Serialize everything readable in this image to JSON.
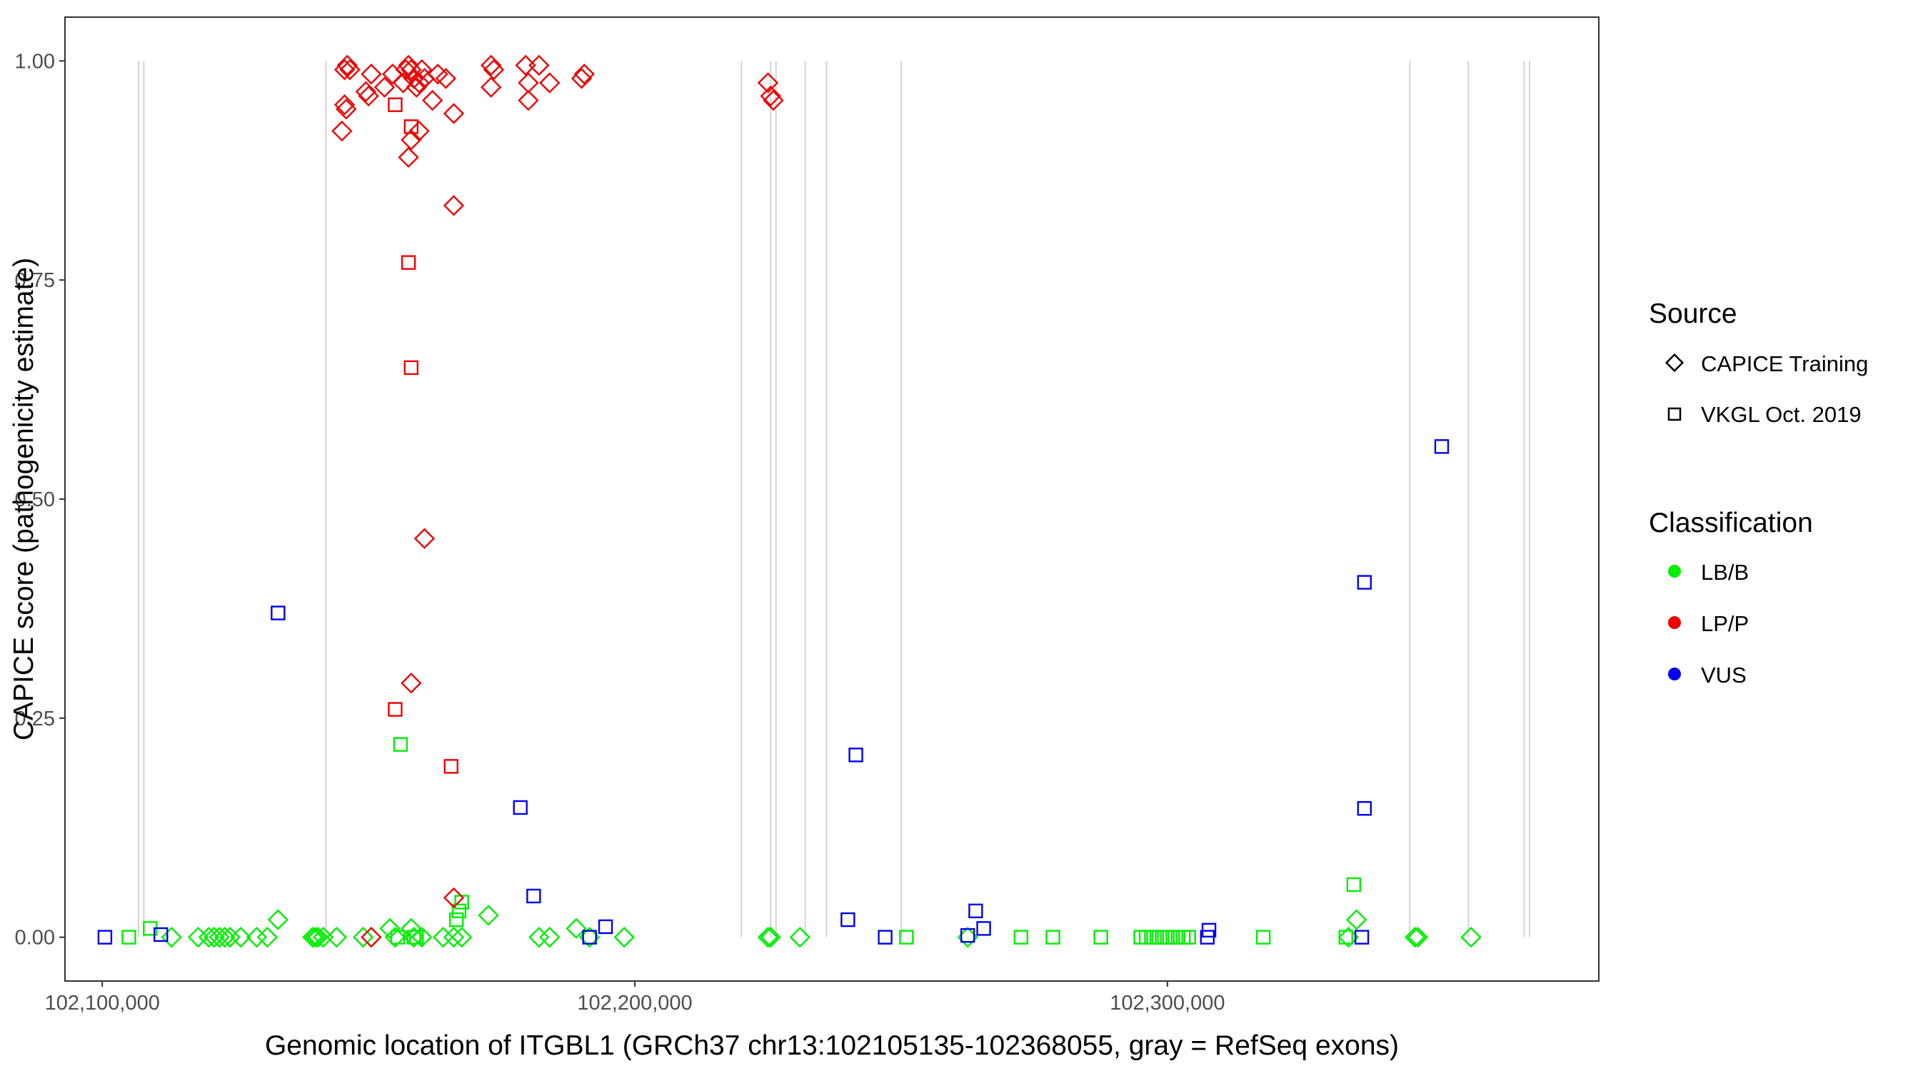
{
  "chart_data": {
    "type": "scatter",
    "xlabel": "Genomic location of ITGBL1 (GRCh37 chr13:102105135-102368055, gray = RefSeq exons)",
    "ylabel": "CAPICE score (pathogenicity estimate)",
    "xlim": [
      102093000,
      102381000
    ],
    "ylim": [
      -0.05,
      1.05
    ],
    "x_ticks": [
      102100000,
      102200000,
      102300000
    ],
    "x_tick_labels": [
      "102,100,000",
      "102,200,000",
      "102,300,000"
    ],
    "y_ticks": [
      0,
      0.25,
      0.5,
      0.75,
      1.0
    ],
    "y_tick_labels": [
      "0.00",
      "0.25",
      "0.50",
      "0.75",
      "1.00"
    ],
    "grid": false,
    "exon_lines": [
      102106800,
      102107800,
      102142000,
      102220000,
      102225500,
      102226500,
      102232000,
      102236000,
      102250000,
      102345500,
      102356500,
      102367000,
      102368000
    ],
    "exon_line_color": "#d3d3d3",
    "classification_colors": {
      "LB/B": "#00ee00",
      "LP/P": "#ee0000",
      "VUS": "#0000ee"
    },
    "legend": {
      "position": "right",
      "source_title": "Source",
      "source_items": [
        {
          "label": "CAPICE Training",
          "shape": "diamond"
        },
        {
          "label": "VKGL Oct. 2019",
          "shape": "square"
        }
      ],
      "class_title": "Classification",
      "class_items": [
        {
          "label": "LB/B",
          "color": "#00ee00"
        },
        {
          "label": "LP/P",
          "color": "#ee0000"
        },
        {
          "label": "VUS",
          "color": "#0000ee"
        }
      ]
    },
    "series": [
      {
        "name": "LB/B",
        "shape": "diamond",
        "points": [
          [
            102113000,
            0
          ],
          [
            102118000,
            0
          ],
          [
            102120000,
            0
          ],
          [
            102121000,
            0
          ],
          [
            102122000,
            0
          ],
          [
            102123000,
            0
          ],
          [
            102124000,
            0
          ],
          [
            102126000,
            0
          ],
          [
            102129000,
            0
          ],
          [
            102131000,
            0
          ],
          [
            102133000,
            0.02
          ],
          [
            102139500,
            0
          ],
          [
            102140000,
            0
          ],
          [
            102140500,
            0
          ],
          [
            102141500,
            0
          ],
          [
            102144000,
            0
          ],
          [
            102149000,
            0
          ],
          [
            102154000,
            0.01
          ],
          [
            102155000,
            0
          ],
          [
            102158000,
            0.01
          ],
          [
            102158500,
            0
          ],
          [
            102160000,
            0
          ],
          [
            102164000,
            0
          ],
          [
            102166000,
            0
          ],
          [
            102167500,
            0
          ],
          [
            102172500,
            0.025
          ],
          [
            102182000,
            0
          ],
          [
            102184000,
            0
          ],
          [
            102189000,
            0.01
          ],
          [
            102191500,
            0
          ],
          [
            102198000,
            0
          ],
          [
            102225000,
            0
          ],
          [
            102225500,
            0
          ],
          [
            102231000,
            0
          ],
          [
            102262500,
            0
          ],
          [
            102334000,
            0
          ],
          [
            102335500,
            0.02
          ],
          [
            102346500,
            0
          ],
          [
            102347000,
            0
          ],
          [
            102357000,
            0
          ]
        ]
      },
      {
        "name": "LB/B",
        "shape": "square",
        "points": [
          [
            102105000,
            0
          ],
          [
            102109000,
            0.01
          ],
          [
            102155500,
            0
          ],
          [
            102156000,
            0.22
          ],
          [
            102158500,
            0
          ],
          [
            102159000,
            0
          ],
          [
            102166500,
            0.02
          ],
          [
            102167000,
            0.03
          ],
          [
            102167500,
            0.04
          ],
          [
            102251000,
            0
          ],
          [
            102272500,
            0
          ],
          [
            102278500,
            0
          ],
          [
            102287500,
            0
          ],
          [
            102295000,
            0
          ],
          [
            102296000,
            0
          ],
          [
            102297000,
            0
          ],
          [
            102298000,
            0
          ],
          [
            102299000,
            0
          ],
          [
            102300000,
            0
          ],
          [
            102301000,
            0
          ],
          [
            102302000,
            0
          ],
          [
            102303000,
            0
          ],
          [
            102304000,
            0
          ],
          [
            102318000,
            0
          ],
          [
            102333500,
            0
          ],
          [
            102335000,
            0.06
          ]
        ]
      },
      {
        "name": "LP/P",
        "shape": "diamond",
        "points": [
          [
            102145500,
            0.99
          ],
          [
            102146000,
            0.995
          ],
          [
            102146500,
            0.99
          ],
          [
            102145500,
            0.95
          ],
          [
            102145800,
            0.945
          ],
          [
            102145000,
            0.92
          ],
          [
            102149500,
            0.965
          ],
          [
            102150000,
            0.96
          ],
          [
            102150500,
            0.985
          ],
          [
            102153000,
            0.97
          ],
          [
            102154500,
            0.985
          ],
          [
            102156500,
            0.975
          ],
          [
            102157000,
            0.99
          ],
          [
            102157500,
            0.995
          ],
          [
            102158000,
            0.99
          ],
          [
            102158500,
            0.98
          ],
          [
            102159000,
            0.97
          ],
          [
            102159500,
            0.975
          ],
          [
            102160000,
            0.99
          ],
          [
            102160500,
            0.98
          ],
          [
            102158000,
            0.91
          ],
          [
            102159500,
            0.92
          ],
          [
            102157500,
            0.89
          ],
          [
            102162000,
            0.955
          ],
          [
            102163000,
            0.985
          ],
          [
            102164500,
            0.98
          ],
          [
            102166000,
            0.94
          ],
          [
            102173000,
            0.995
          ],
          [
            102173500,
            0.99
          ],
          [
            102173000,
            0.97
          ],
          [
            102179500,
            0.995
          ],
          [
            102180000,
            0.975
          ],
          [
            102180000,
            0.955
          ],
          [
            102182000,
            0.995
          ],
          [
            102184000,
            0.975
          ],
          [
            102190000,
            0.98
          ],
          [
            102190500,
            0.985
          ],
          [
            102225000,
            0.975
          ],
          [
            102225500,
            0.96
          ],
          [
            102226000,
            0.955
          ],
          [
            102166000,
            0.835
          ],
          [
            102160500,
            0.455
          ],
          [
            102158000,
            0.29
          ],
          [
            102166000,
            0.045
          ],
          [
            102150500,
            0
          ]
        ]
      },
      {
        "name": "LP/P",
        "shape": "square",
        "points": [
          [
            102155000,
            0.95
          ],
          [
            102158000,
            0.925
          ],
          [
            102157500,
            0.77
          ],
          [
            102158000,
            0.65
          ],
          [
            102155000,
            0.26
          ],
          [
            102165500,
            0.195
          ]
        ]
      },
      {
        "name": "VUS",
        "shape": "square",
        "points": [
          [
            102100500,
            0
          ],
          [
            102111000,
            0.003
          ],
          [
            102133000,
            0.37
          ],
          [
            102178500,
            0.148
          ],
          [
            102181000,
            0.047
          ],
          [
            102191500,
            0
          ],
          [
            102194500,
            0.012
          ],
          [
            102240000,
            0.02
          ],
          [
            102241500,
            0.208
          ],
          [
            102247000,
            0
          ],
          [
            102262500,
            0.002
          ],
          [
            102264000,
            0.03
          ],
          [
            102265500,
            0.01
          ],
          [
            102307500,
            0
          ],
          [
            102307800,
            0.008
          ],
          [
            102336500,
            0
          ],
          [
            102337000,
            0.405
          ],
          [
            102337000,
            0.147
          ],
          [
            102351500,
            0.56
          ]
        ]
      }
    ]
  }
}
